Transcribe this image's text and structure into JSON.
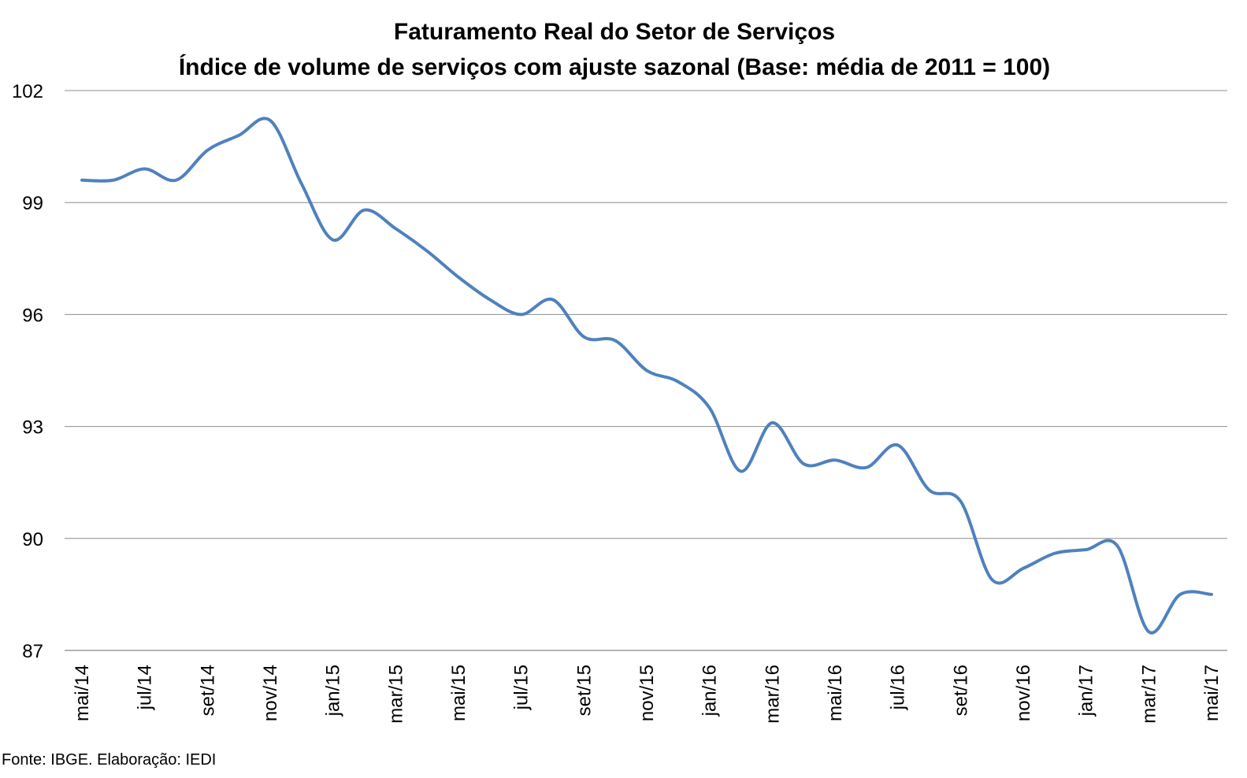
{
  "chart_data": {
    "type": "line",
    "title": "Faturamento Real do Setor de Serviços",
    "subtitle": "Índice de volume de serviços com ajuste sazonal (Base: média de 2011 = 100)",
    "xlabel": "",
    "ylabel": "",
    "ylim": [
      87,
      102
    ],
    "yticks": [
      87,
      90,
      93,
      96,
      99,
      102
    ],
    "grid": true,
    "legend": "none",
    "line_color": "#4F81BD",
    "x": [
      "mai/14",
      "jun/14",
      "jul/14",
      "ago/14",
      "set/14",
      "out/14",
      "nov/14",
      "dez/14",
      "jan/15",
      "fev/15",
      "mar/15",
      "abr/15",
      "mai/15",
      "jun/15",
      "jul/15",
      "ago/15",
      "set/15",
      "out/15",
      "nov/15",
      "dez/15",
      "jan/16",
      "fev/16",
      "mar/16",
      "abr/16",
      "mai/16",
      "jun/16",
      "jul/16",
      "ago/16",
      "set/16",
      "out/16",
      "nov/16",
      "dez/16",
      "jan/17",
      "fev/17",
      "mar/17",
      "abr/17",
      "mai/17"
    ],
    "x_tick_labels": [
      "mai/14",
      "jul/14",
      "set/14",
      "nov/14",
      "jan/15",
      "mar/15",
      "mai/15",
      "jul/15",
      "set/15",
      "nov/15",
      "jan/16",
      "mar/16",
      "mai/16",
      "jul/16",
      "set/16",
      "nov/16",
      "jan/17",
      "mar/17",
      "mai/17"
    ],
    "series": [
      {
        "values": [
          99.6,
          99.6,
          99.9,
          99.6,
          100.4,
          100.8,
          101.2,
          99.5,
          98.0,
          98.8,
          98.3,
          97.7,
          97.0,
          96.4,
          96.0,
          96.4,
          95.4,
          95.3,
          94.5,
          94.2,
          93.5,
          91.8,
          93.1,
          92.0,
          92.1,
          91.9,
          92.5,
          91.3,
          91.0,
          88.9,
          89.2,
          89.6,
          89.7,
          89.8,
          87.5,
          88.5,
          88.5
        ]
      }
    ]
  },
  "footer": {
    "source": "Fonte: IBGE. Elaboração: IEDI"
  }
}
